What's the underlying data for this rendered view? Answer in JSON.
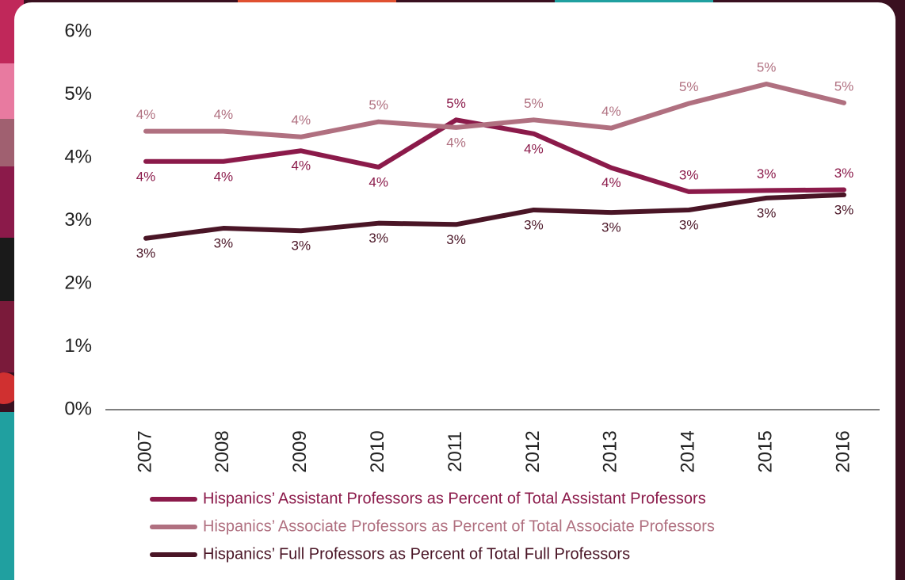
{
  "chart_data": {
    "type": "line",
    "categories": [
      "2007",
      "2008",
      "2009",
      "2010",
      "2011",
      "2012",
      "2013",
      "2014",
      "2015",
      "2016"
    ],
    "series": [
      {
        "name": "Hispanics’ Assistant Professors as Percent of Total Assistant Professors",
        "color": "#8b1a4a",
        "values": [
          3.94,
          3.94,
          4.11,
          3.85,
          4.6,
          4.38,
          3.84,
          3.46,
          3.48,
          3.49
        ],
        "value_labels": [
          "4%",
          "4%",
          "4%",
          "4%",
          "5%",
          "4%",
          "4%",
          "3%",
          "3%",
          "3%"
        ]
      },
      {
        "name": "Hispanics’ Associate Professors as Percent of Total Associate Professors",
        "color": "#b07080",
        "values": [
          4.42,
          4.42,
          4.33,
          4.57,
          4.48,
          4.6,
          4.47,
          4.86,
          5.17,
          4.87
        ],
        "value_labels": [
          "4%",
          "4%",
          "4%",
          "5%",
          "4%",
          "5%",
          "4%",
          "5%",
          "5%",
          "5%"
        ]
      },
      {
        "name": "Hispanics’ Full Professors as Percent of Total Full Professors",
        "color": "#4a1526",
        "values": [
          2.72,
          2.88,
          2.84,
          2.96,
          2.94,
          3.17,
          3.13,
          3.17,
          3.36,
          3.41
        ],
        "value_labels": [
          "3%",
          "3%",
          "3%",
          "3%",
          "3%",
          "3%",
          "3%",
          "3%",
          "3%",
          "3%"
        ]
      }
    ],
    "ylim": [
      0,
      6
    ],
    "yticks": [
      {
        "value": 0,
        "label": "0%"
      },
      {
        "value": 1,
        "label": "1%"
      },
      {
        "value": 2,
        "label": "2%"
      },
      {
        "value": 3,
        "label": "3%"
      },
      {
        "value": 4,
        "label": "4%"
      },
      {
        "value": 5,
        "label": "5%"
      },
      {
        "value": 6,
        "label": "6%"
      }
    ],
    "grid": false
  }
}
